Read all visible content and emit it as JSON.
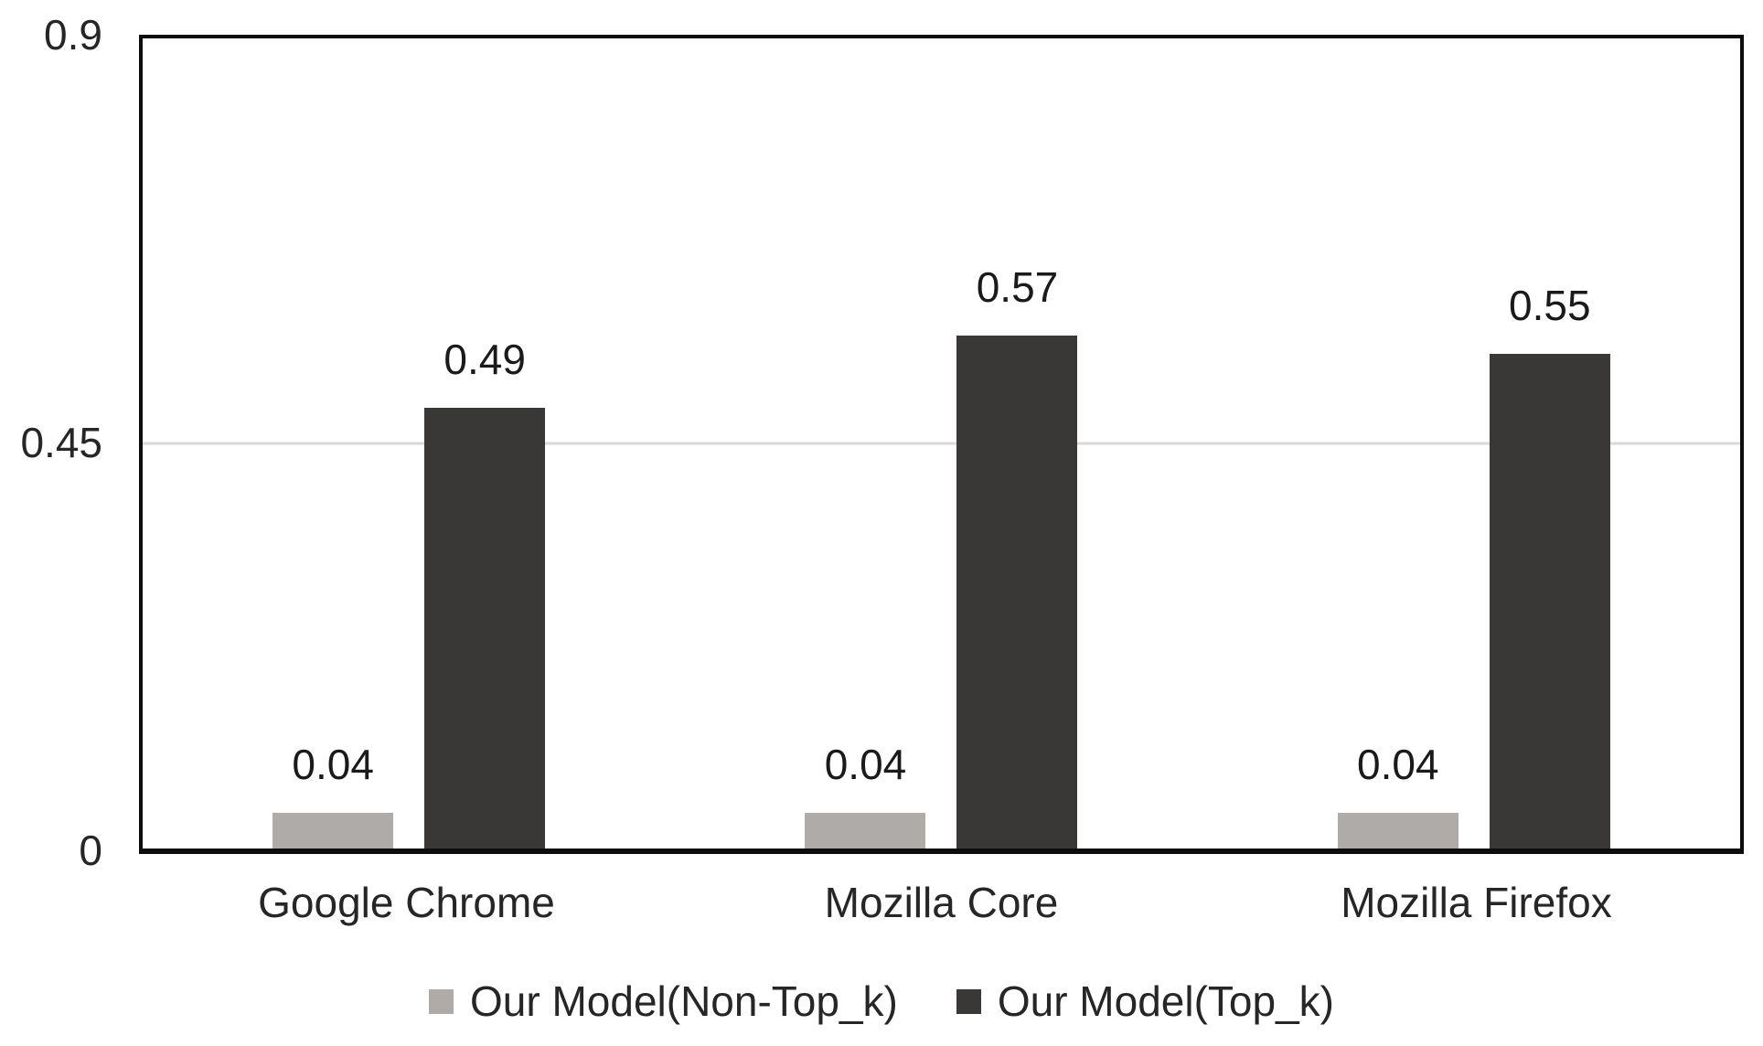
{
  "chart_data": {
    "type": "bar",
    "title": "",
    "xlabel": "",
    "ylabel": "",
    "categories": [
      "Google Chrome",
      "Mozilla Core",
      "Mozilla Firefox"
    ],
    "series": [
      {
        "name": "Our Model(Non-Top_k)",
        "color": "#aeaba8",
        "values": [
          0.04,
          0.04,
          0.04
        ],
        "labels": [
          "0.04",
          "0.04",
          "0.04"
        ]
      },
      {
        "name": "Our Model(Top_k)",
        "color": "#3a3836",
        "values": [
          0.49,
          0.57,
          0.55
        ],
        "labels": [
          "0.49",
          "0.57",
          "0.55"
        ]
      }
    ],
    "y_axis": {
      "min": 0,
      "max": 0.9,
      "ticks": [
        {
          "value": 0.9,
          "label": "0.9"
        },
        {
          "value": 0.45,
          "label": "0.45"
        },
        {
          "value": 0,
          "label": "0"
        }
      ],
      "gridlines": [
        0.45
      ]
    },
    "legend_position": "bottom",
    "grid": "horizontal-at-0.45-only",
    "colors": {
      "gridline": "#d9d9d9",
      "axis_border": "#0d0d0d",
      "text": "#262626",
      "background": "#ffffff"
    }
  }
}
